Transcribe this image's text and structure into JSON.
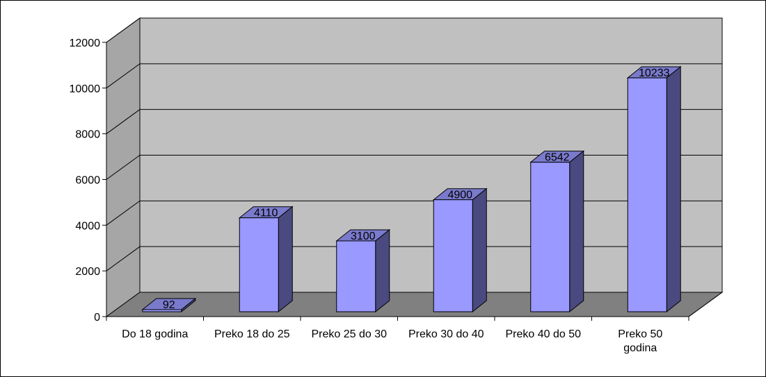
{
  "chart_data": {
    "type": "bar",
    "categories": [
      [
        "Do 18 godina"
      ],
      [
        "Preko 18 do 25"
      ],
      [
        "Preko 25 do 30"
      ],
      [
        "Preko 30 do 40"
      ],
      [
        "Preko 40 do 50"
      ],
      [
        "Preko 50",
        "godina"
      ]
    ],
    "values": [
      92,
      4110,
      3100,
      4900,
      6542,
      10233
    ],
    "data_labels": [
      "92",
      "4110",
      "3100",
      "4900",
      "6542",
      "10233"
    ],
    "ylim": [
      0,
      12000
    ],
    "yticks": [
      0,
      2000,
      4000,
      6000,
      8000,
      10000,
      12000
    ],
    "grid": true,
    "legend": "none",
    "style": "3d-column",
    "colors": {
      "bar_front": "#9999ff",
      "bar_side": "#4a4a80",
      "bar_top": "#7a7acc",
      "back_wall": "#c0c0c0",
      "side_wall": "#a6a6a6",
      "floor": "#808080",
      "gridline": "#000000",
      "border": "#000000"
    }
  }
}
